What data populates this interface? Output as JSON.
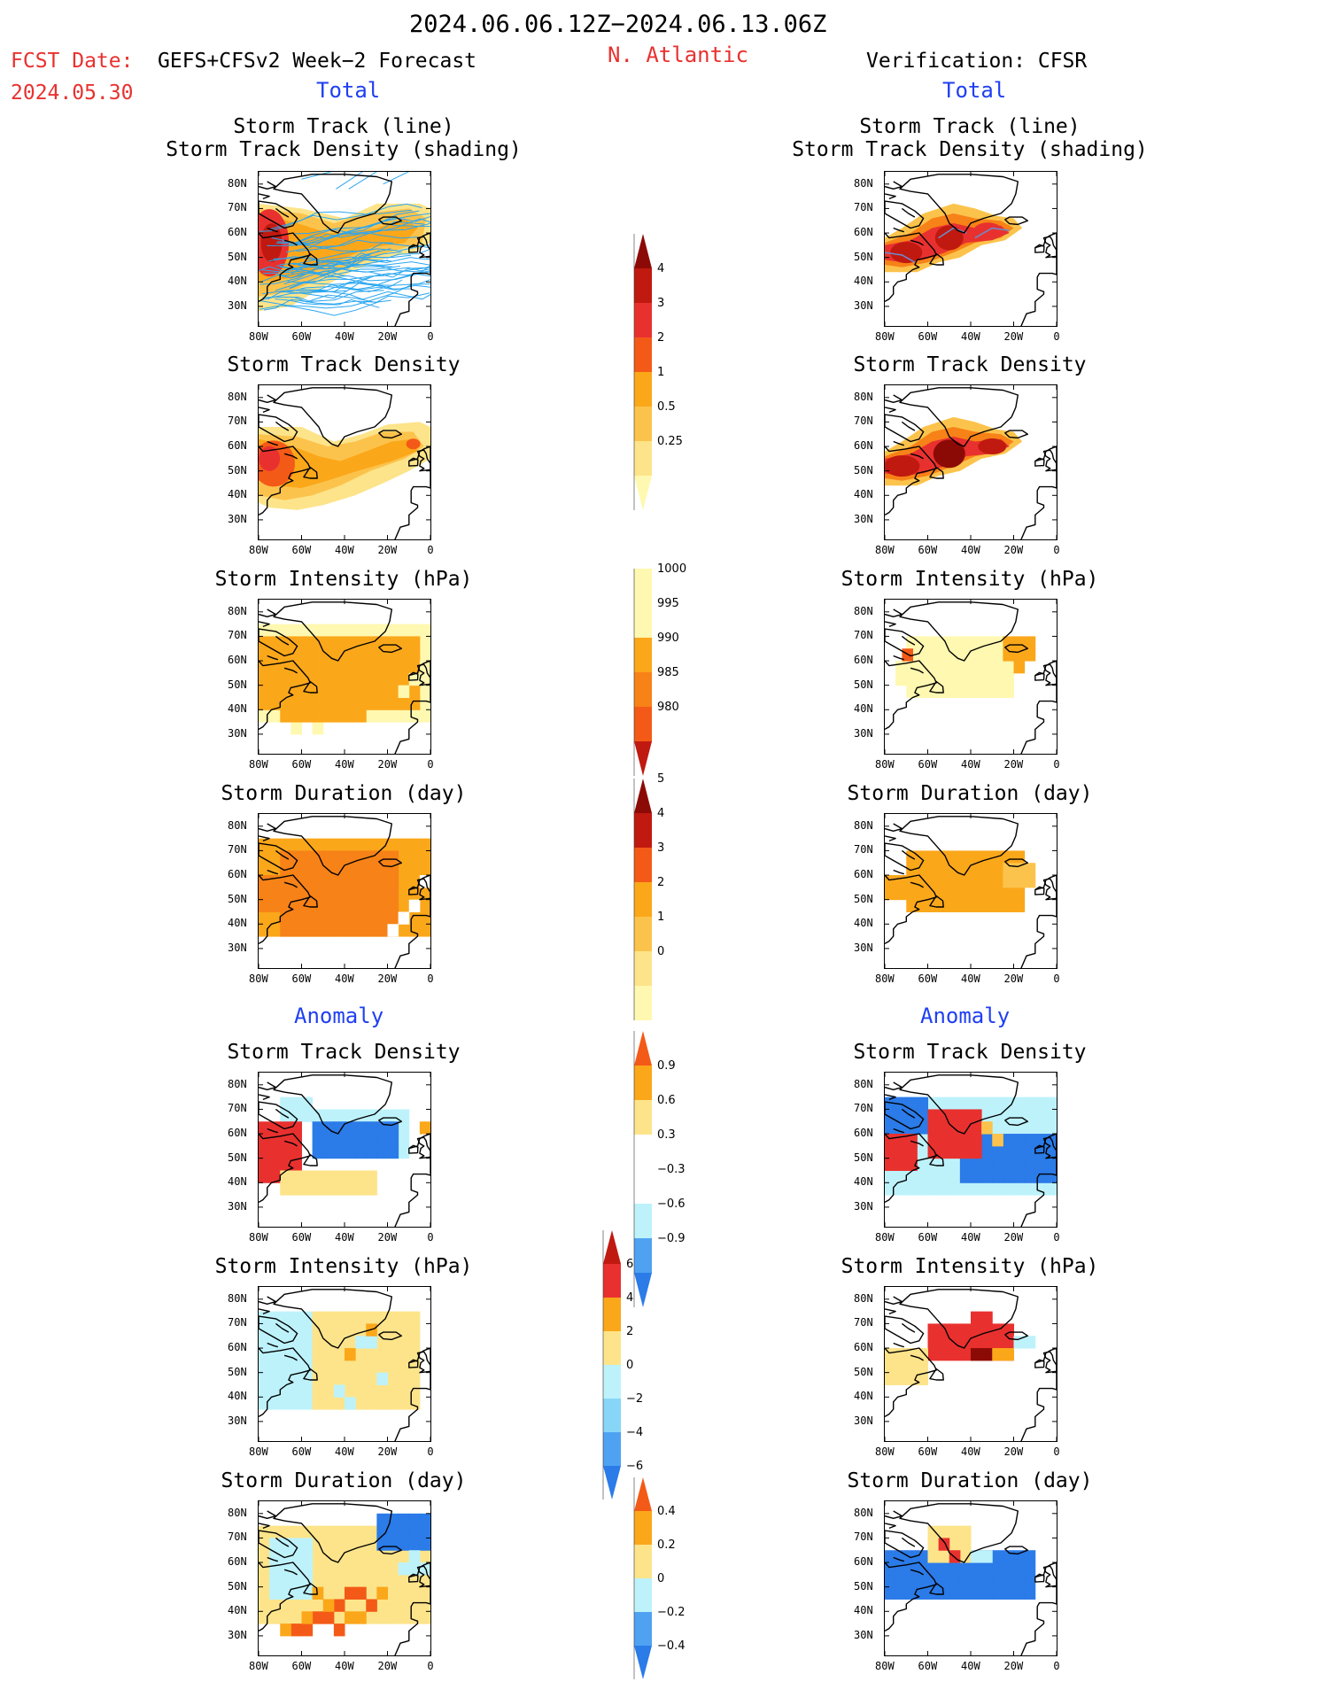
{
  "header": {
    "main_title": "2024.06.06.12Z−2024.06.13.06Z",
    "fcst_label": "FCST Date:",
    "forecast_name": "GEFS+CFSv2 Week−2 Forecast",
    "fcst_date": "2024.05.30",
    "region": "N. Atlantic",
    "verification": "Verification: CFSR"
  },
  "sections": {
    "total": "Total",
    "anomaly": "Anomaly"
  },
  "panel_titles": {
    "track_line": "Storm Track (line)",
    "track_shading": "Storm Track Density (shading)",
    "density": "Storm Track Density",
    "intensity": "Storm Intensity (hPa)",
    "duration": "Storm Duration (day)"
  },
  "axes": {
    "lat_ticks": [
      "80N",
      "70N",
      "60N",
      "50N",
      "40N",
      "30N"
    ],
    "lon_ticks": [
      "80W",
      "60W",
      "40W",
      "20W",
      "0"
    ]
  },
  "colorbars": {
    "density": [
      "4",
      "3",
      "2",
      "1",
      "0.5",
      "0.25"
    ],
    "intensity": [
      "1000",
      "995",
      "990",
      "985",
      "980"
    ],
    "duration": [
      "5",
      "4",
      "3",
      "2",
      "1",
      "0"
    ],
    "density_anom": [
      "0.9",
      "0.6",
      "0.3",
      "−0.3",
      "−0.6",
      "−0.9"
    ],
    "intensity_anom": [
      "6",
      "4",
      "2",
      "0",
      "−2",
      "−4",
      "−6"
    ],
    "duration_anom": [
      "0.4",
      "0.2",
      "0",
      "−0.2",
      "−0.4"
    ]
  },
  "colors": {
    "title_red": "#e8312f",
    "section_blue": "#1f3ff2",
    "track_blue": "#2aa6f0"
  }
}
